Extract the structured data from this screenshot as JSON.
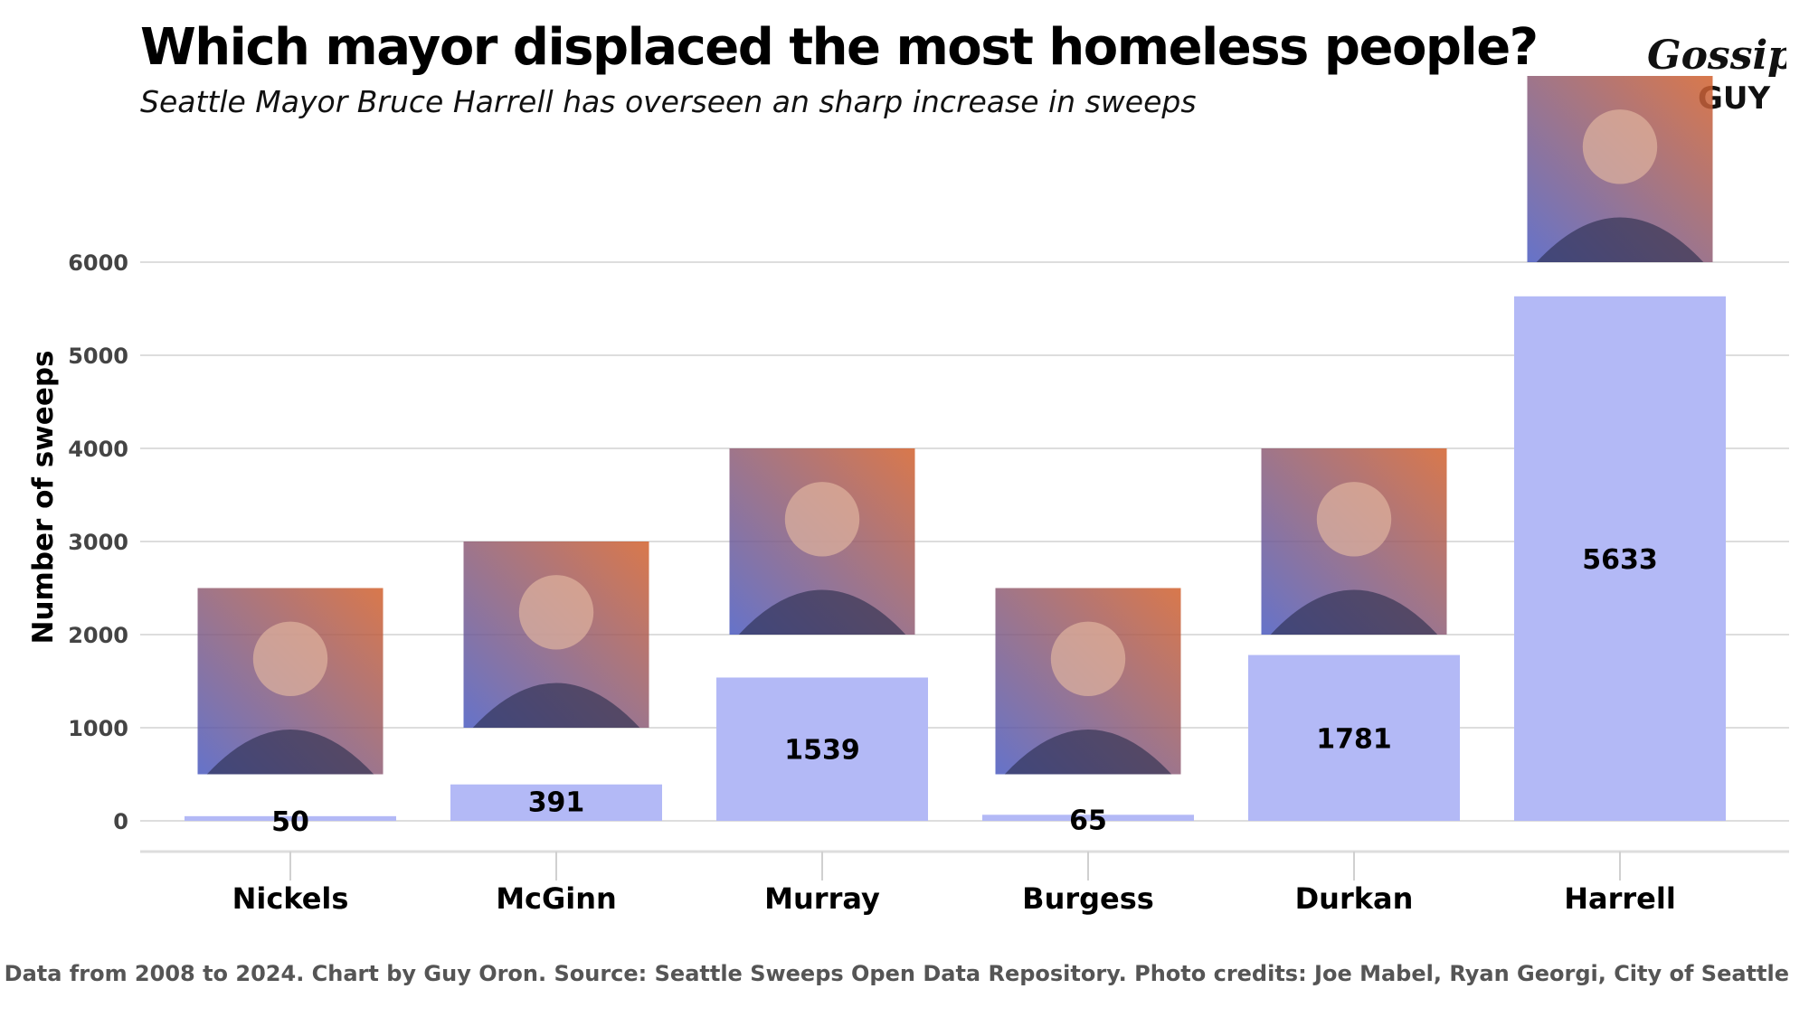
{
  "header": {
    "title": "Which mayor displaced the most homeless people?",
    "subtitle": "Seattle Mayor Bruce Harrell has overseen an sharp increase in sweeps"
  },
  "logo": {
    "line1": "Gossip",
    "line2": "GUY"
  },
  "caption": "Data from 2008 to 2024. Chart by Guy Oron. Source: Seattle Sweeps Open Data Repository. Photo credits: Joe Mabel, Ryan Georgi, City of Seattle",
  "colors": {
    "bar": "#b3b9f6",
    "grid": "#dddddd",
    "photo_gradient": [
      "#4a5ac0",
      "#d2602c"
    ]
  },
  "chart_data": {
    "type": "bar",
    "title": "Which mayor displaced the most homeless people?",
    "subtitle": "Seattle Mayor Bruce Harrell has overseen an sharp increase in sweeps",
    "ylabel": "Number of sweeps",
    "xlabel": "",
    "ylim": [
      0,
      6000
    ],
    "yticks": [
      0,
      1000,
      2000,
      3000,
      4000,
      5000,
      6000
    ],
    "grid": true,
    "categories": [
      "Nickels",
      "McGinn",
      "Murray",
      "Burgess",
      "Durkan",
      "Harrell"
    ],
    "values": [
      50,
      391,
      1539,
      65,
      1781,
      5633
    ],
    "photos": [
      {
        "category": "Nickels",
        "y_bottom": 500,
        "y_top": 2500
      },
      {
        "category": "McGinn",
        "y_bottom": 1000,
        "y_top": 3000
      },
      {
        "category": "Murray",
        "y_bottom": 2000,
        "y_top": 4000
      },
      {
        "category": "Burgess",
        "y_bottom": 500,
        "y_top": 2500
      },
      {
        "category": "Durkan",
        "y_bottom": 2000,
        "y_top": 4000
      },
      {
        "category": "Harrell",
        "y_bottom": 6000,
        "y_top": 8000
      }
    ]
  }
}
